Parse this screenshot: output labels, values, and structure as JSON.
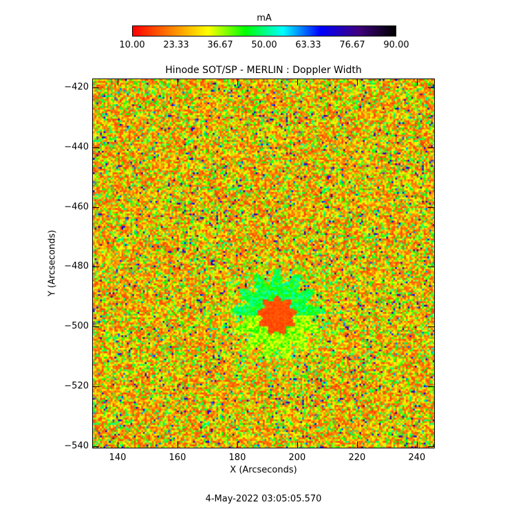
{
  "chart_data": {
    "type": "heatmap",
    "title": "Hinode SOT/SP - MERLIN : Doppler Width",
    "xlabel": "X (Arcseconds)",
    "ylabel": "Y (Arcseconds)",
    "xlim": [
      131.5,
      246
    ],
    "ylim": [
      -540.7,
      -417
    ],
    "xticks": [
      "140",
      "160",
      "180",
      "200",
      "220",
      "240"
    ],
    "yticks": [
      "-420",
      "-440",
      "-460",
      "-480",
      "-500",
      "-520",
      "-540"
    ],
    "colorbar": {
      "label": "mA",
      "range": [
        10,
        90
      ],
      "ticks": [
        "10.00",
        "23.33",
        "36.67",
        "50.00",
        "63.33",
        "76.67",
        "90.00"
      ],
      "colors": [
        "#ff0000",
        "#ff8000",
        "#ffff00",
        "#00ff00",
        "#00ffff",
        "#0000ff",
        "#400080",
        "#000000"
      ]
    },
    "features": {
      "sunspot_center": [
        193,
        -496
      ],
      "umbra_radius": 6,
      "penumbra_radius": 13,
      "umbra_value": 15,
      "penumbra_value": 45,
      "background_range": [
        15,
        50
      ]
    },
    "date": "4-May-2022 03:05:05.570"
  }
}
